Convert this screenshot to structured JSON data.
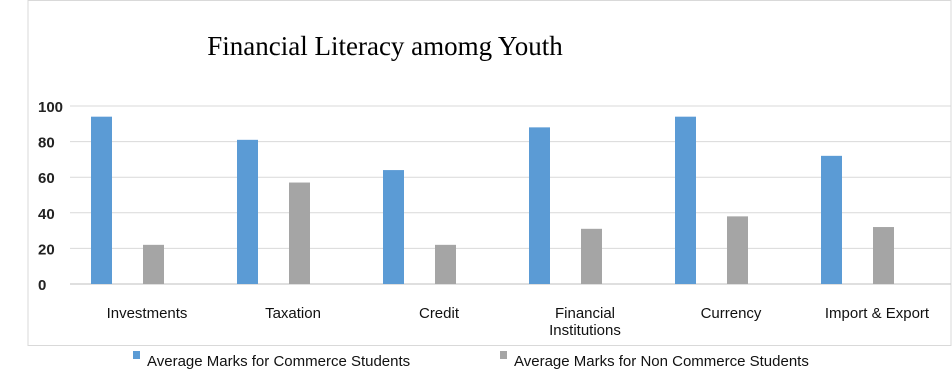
{
  "chart_data": {
    "type": "bar",
    "title": "Financial Literacy amomg Youth",
    "categories": [
      "Investments",
      "Taxation",
      "Credit",
      "Financial Institutions",
      "Currency",
      "Import & Export"
    ],
    "series": [
      {
        "name": "Average Marks for Commerce Students",
        "values": [
          94,
          81,
          64,
          88,
          94,
          72
        ],
        "color": "#5B9BD5"
      },
      {
        "name": "Average Marks for  Non Commerce Students",
        "values": [
          22,
          57,
          22,
          31,
          38,
          32
        ],
        "color": "#A5A5A5"
      }
    ],
    "yticks": [
      "0",
      "20",
      "40",
      "60",
      "80",
      "100"
    ],
    "ylim": [
      0,
      100
    ],
    "grid": true,
    "legend": "bottom",
    "xlabel": "",
    "ylabel": ""
  }
}
